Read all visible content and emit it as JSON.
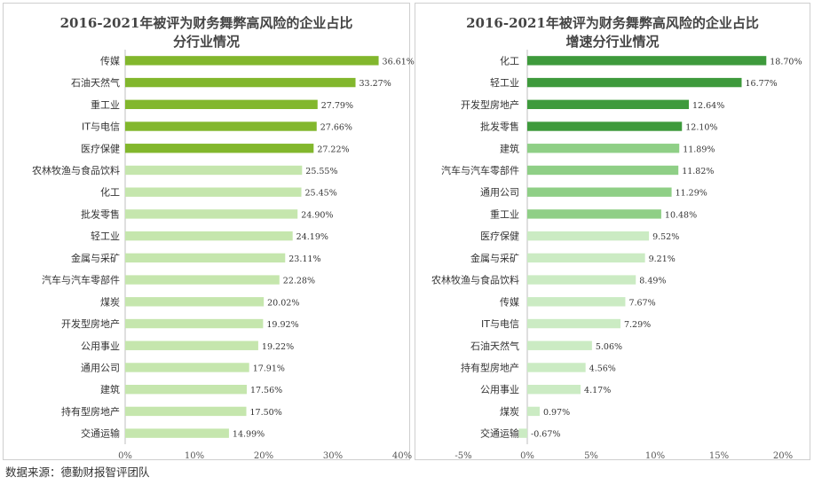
{
  "source_note": "数据来源：德勤财报智评团队",
  "chart_data": [
    {
      "type": "bar",
      "orientation": "horizontal",
      "title_line1": "2016-2021年被评为财务舞弊高风险的企业占比",
      "title_line2": "分行业情况",
      "categories": [
        "传媒",
        "石油天然气",
        "重工业",
        "IT与电信",
        "医疗保健",
        "农林牧渔与食品饮料",
        "化工",
        "批发零售",
        "轻工业",
        "金属与采矿",
        "汽车与汽车零部件",
        "煤炭",
        "开发型房地产",
        "公用事业",
        "通用公司",
        "建筑",
        "持有型房地产",
        "交通运输"
      ],
      "values": [
        36.61,
        33.27,
        27.79,
        27.66,
        27.22,
        25.55,
        25.45,
        24.9,
        24.19,
        23.11,
        22.28,
        20.02,
        19.92,
        19.22,
        17.91,
        17.56,
        17.5,
        14.99
      ],
      "value_labels": [
        "36.61%",
        "33.27%",
        "27.79%",
        "27.66%",
        "27.22%",
        "25.55%",
        "25.45%",
        "24.90%",
        "24.19%",
        "23.11%",
        "22.28%",
        "20.02%",
        "19.92%",
        "19.22%",
        "17.91%",
        "17.56%",
        "17.50%",
        "14.99%"
      ],
      "xlim": [
        0,
        40
      ],
      "ticks": [
        0,
        10,
        20,
        30,
        40
      ],
      "tick_labels": [
        "0%",
        "10%",
        "20%",
        "30%",
        "40%"
      ],
      "colors": {
        "top": "#82b72d",
        "rest": "#c5e6ad"
      },
      "highlight_count": 5
    },
    {
      "type": "bar",
      "orientation": "horizontal",
      "title_line1": "2016-2021年被评为财务舞弊高风险的企业占比",
      "title_line2": "增速分行业情况",
      "categories": [
        "化工",
        "轻工业",
        "开发型房地产",
        "批发零售",
        "建筑",
        "汽车与汽车零部件",
        "通用公司",
        "重工业",
        "医疗保健",
        "金属与采矿",
        "农林牧渔与食品饮料",
        "传媒",
        "IT与电信",
        "石油天然气",
        "持有型房地产",
        "公用事业",
        "煤炭",
        "交通运输"
      ],
      "values": [
        18.7,
        16.77,
        12.64,
        12.1,
        11.89,
        11.82,
        11.29,
        10.48,
        9.52,
        9.21,
        8.49,
        7.67,
        7.29,
        5.06,
        4.56,
        4.17,
        0.97,
        -0.67
      ],
      "value_labels": [
        "18.70%",
        "16.77%",
        "12.64%",
        "12.10%",
        "11.89%",
        "11.82%",
        "11.29%",
        "10.48%",
        "9.52%",
        "9.21%",
        "8.49%",
        "7.67%",
        "7.29%",
        "5.06%",
        "4.56%",
        "4.17%",
        "0.97%",
        "-0.67%"
      ],
      "xlim": [
        -5,
        20
      ],
      "ticks": [
        -5,
        0,
        5,
        10,
        15,
        20
      ],
      "tick_labels": [
        "-5%",
        "0%",
        "5%",
        "10%",
        "15%",
        "20%"
      ],
      "colors": {
        "top": "#3e9a3c",
        "mid": "#8fcf86",
        "rest": "#cbebc3"
      },
      "top_count": 4,
      "mid_count": 8
    }
  ]
}
